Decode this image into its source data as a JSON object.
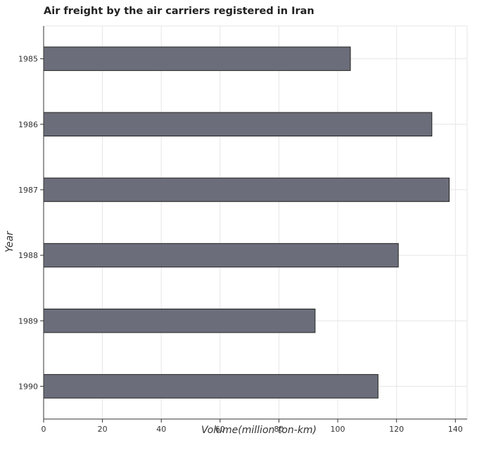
{
  "chart_data": {
    "type": "bar",
    "orientation": "horizontal",
    "title": "Air freight by the air carriers registered in Iran",
    "xlabel": "Volume(million ton-km)",
    "ylabel": "Year",
    "categories": [
      "1985",
      "1986",
      "1987",
      "1988",
      "1989",
      "1990"
    ],
    "values": [
      104.3,
      132.0,
      137.9,
      120.6,
      92.3,
      113.7
    ],
    "xlim": [
      0,
      144
    ],
    "xticks": [
      0,
      20,
      40,
      60,
      80,
      100,
      120,
      140
    ],
    "grid": true,
    "bar_color": "#6b6e7a",
    "bar_edge_color": "#222222"
  }
}
